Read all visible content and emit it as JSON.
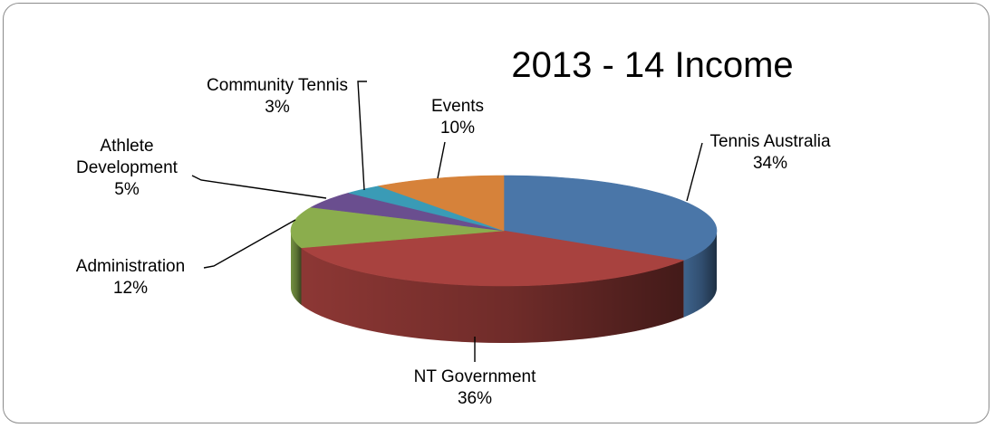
{
  "chart_data": {
    "type": "pie",
    "title": "2013 - 14 Income",
    "style": "3d",
    "legend": "none",
    "slices": [
      {
        "category": "Tennis Australia",
        "label_lines": [
          "Tennis Australia"
        ],
        "value": 34,
        "value_label": "34%",
        "color": "#4a76a8"
      },
      {
        "category": "NT Government",
        "label_lines": [
          "NT Government"
        ],
        "value": 36,
        "value_label": "36%",
        "color": "#a8423f"
      },
      {
        "category": "Administration",
        "label_lines": [
          "Administration"
        ],
        "value": 12,
        "value_label": "12%",
        "color": "#8bad4d"
      },
      {
        "category": "Athlete Development",
        "label_lines": [
          "Athlete",
          "Development"
        ],
        "value": 5,
        "value_label": "5%",
        "color": "#6a4e8f"
      },
      {
        "category": "Community Tennis",
        "label_lines": [
          "Community Tennis"
        ],
        "value": 3,
        "value_label": "3%",
        "color": "#3a9bb6"
      },
      {
        "category": "Events",
        "label_lines": [
          "Events"
        ],
        "value": 10,
        "value_label": "10%",
        "color": "#d6823a"
      }
    ]
  }
}
